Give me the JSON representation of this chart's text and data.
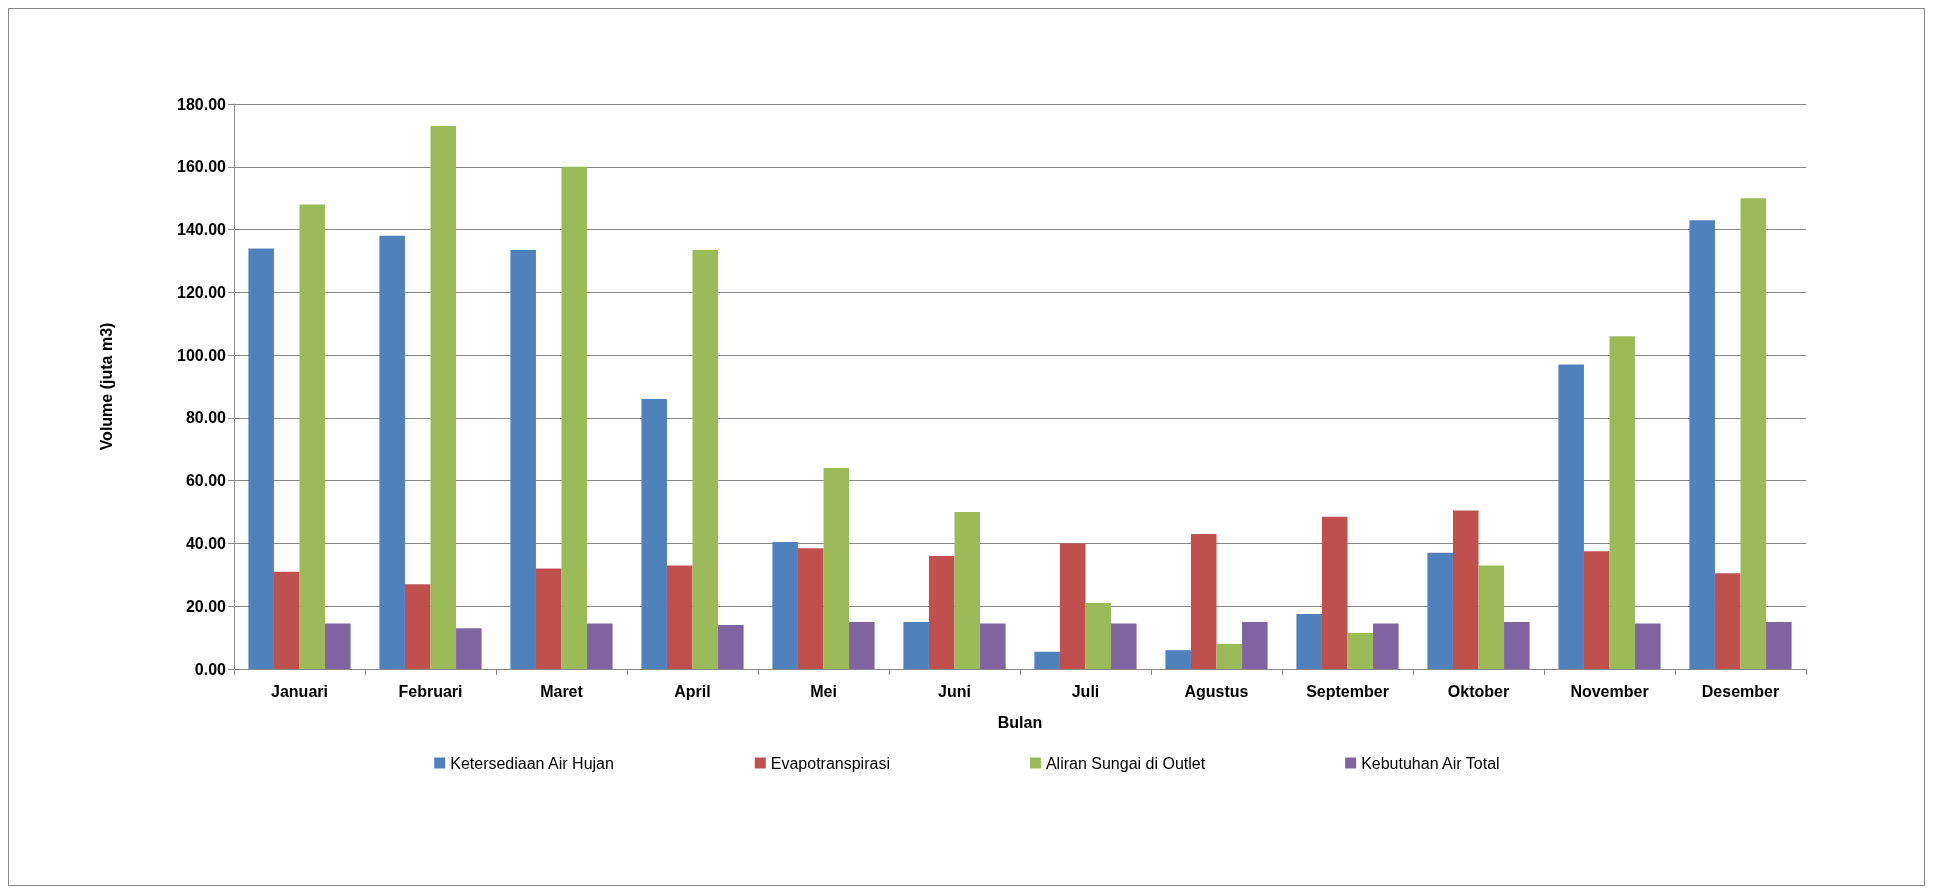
{
  "chart_data": {
    "type": "bar",
    "xlabel": "Bulan",
    "ylabel": "Volume (juta m3)",
    "categories": [
      "Januari",
      "Februari",
      "Maret",
      "April",
      "Mei",
      "Juni",
      "Juli",
      "Agustus",
      "September",
      "Oktober",
      "November",
      "Desember"
    ],
    "series": [
      {
        "name": "Ketersediaan Air Hujan",
        "color": "#4f81bd",
        "values": [
          134,
          138,
          133.5,
          86,
          40.5,
          15,
          5.5,
          6,
          17.5,
          37,
          97,
          143
        ]
      },
      {
        "name": "Evapotranspirasi",
        "color": "#c0504d",
        "values": [
          31,
          27,
          32,
          33,
          38.5,
          36,
          40,
          43,
          48.5,
          50.5,
          37.5,
          30.5
        ]
      },
      {
        "name": "Aliran Sungai di Outlet",
        "color": "#9bbb59",
        "values": [
          148,
          173,
          160,
          133.5,
          64,
          50,
          21,
          8,
          11.5,
          33,
          106,
          150
        ]
      },
      {
        "name": "Kebutuhan Air Total",
        "color": "#8064a2",
        "values": [
          14.5,
          13,
          14.5,
          14,
          15,
          14.5,
          14.5,
          15,
          14.5,
          15,
          14.5,
          15
        ]
      }
    ],
    "ylim": [
      0,
      180
    ],
    "yticks": [
      {
        "value": 0,
        "label": "0.00"
      },
      {
        "value": 20,
        "label": "20.00"
      },
      {
        "value": 40,
        "label": "40.00"
      },
      {
        "value": 60,
        "label": "60.00"
      },
      {
        "value": 80,
        "label": "80.00"
      },
      {
        "value": 100,
        "label": "100.00"
      },
      {
        "value": 120,
        "label": "120.00"
      },
      {
        "value": 140,
        "label": "140.00"
      },
      {
        "value": 160,
        "label": "160.00"
      },
      {
        "value": 180,
        "label": "180.00"
      }
    ],
    "grid": "y",
    "legend": "bottom"
  }
}
